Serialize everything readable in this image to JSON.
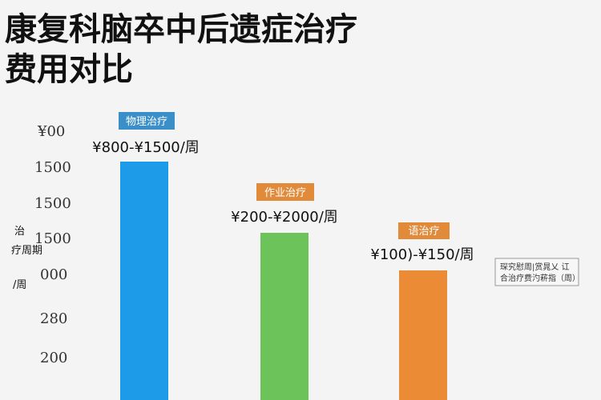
{
  "header": {
    "title_lines": [
      "康复科脑卒中后遗症治疗",
      "费用对比"
    ]
  },
  "axis": {
    "label_lines": [
      "治",
      "疗周期",
      "/周"
    ],
    "ticks": [
      "¥00",
      "1500",
      "1500",
      "1500",
      "000",
      "280",
      "200"
    ]
  },
  "bars": [
    {
      "tag": "物理治疗",
      "label": "¥800-¥1500/周"
    },
    {
      "tag": "作业治疗",
      "label": "¥200-¥2000/周"
    },
    {
      "tag": "语治疗",
      "label": "¥100)-¥150/周"
    }
  ],
  "note": {
    "lines": [
      "琛究慰周|赏晁乂  讧",
      "合治疗费汋菥指（周）"
    ]
  }
}
